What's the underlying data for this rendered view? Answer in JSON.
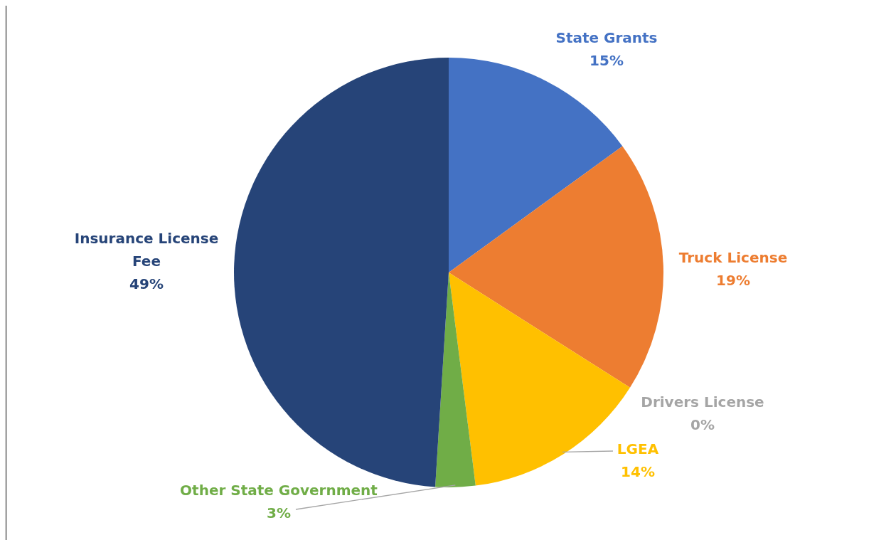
{
  "chart_data": {
    "type": "pie",
    "categories": [
      "State Grants",
      "Truck License",
      "Drivers License",
      "LGEA",
      "Other State Government",
      "Insurance License Fee"
    ],
    "values": [
      15,
      19,
      0,
      14,
      3,
      49
    ],
    "value_labels": [
      "15%",
      "19%",
      "0%",
      "14%",
      "3%",
      "49%"
    ],
    "colors": [
      "#4472c4",
      "#ed7d31",
      "#a5a5a5",
      "#ffc000",
      "#70ad47",
      "#264478"
    ]
  }
}
